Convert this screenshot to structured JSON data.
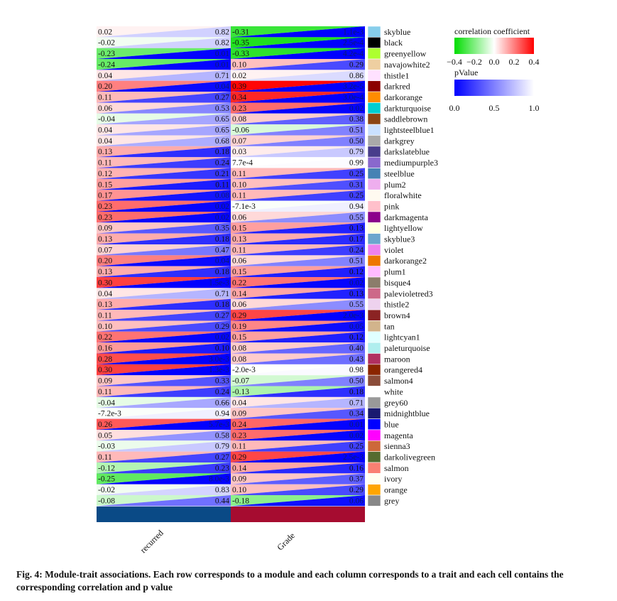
{
  "chart_data": {
    "type": "heatmap",
    "cell_style": "triangle-split: upper-left triangle colored by correlation coefficient, lower-right triangle colored by p value",
    "traits": [
      "recurred",
      "Grade"
    ],
    "trait_colors": [
      "#0a4a86",
      "#a60c30"
    ],
    "modules": [
      {
        "name": "skyblue",
        "color": "#87ceeb",
        "recurred": {
          "r": "0.02",
          "p": "0.82"
        },
        "Grade": {
          "r": "-0.31",
          "p": "1.1e-3"
        }
      },
      {
        "name": "black",
        "color": "#000000",
        "recurred": {
          "r": "-0.02",
          "p": "0.82"
        },
        "Grade": {
          "r": "-0.35",
          "p": "2.5e-4"
        }
      },
      {
        "name": "greenyellow",
        "color": "#adff2f",
        "recurred": {
          "r": "-0.23",
          "p": "0.01"
        },
        "Grade": {
          "r": "-0.33",
          "p": "4.2e-4"
        }
      },
      {
        "name": "navajowhite2",
        "color": "#eecfa1",
        "recurred": {
          "r": "-0.24",
          "p": "0.01"
        },
        "Grade": {
          "r": "0.10",
          "p": "0.29"
        }
      },
      {
        "name": "thistle1",
        "color": "#ffe1ff",
        "recurred": {
          "r": "0.04",
          "p": "0.71"
        },
        "Grade": {
          "r": "0.02",
          "p": "0.86"
        }
      },
      {
        "name": "darkred",
        "color": "#8b0000",
        "recurred": {
          "r": "0.20",
          "p": "0.04"
        },
        "Grade": {
          "r": "0.39",
          "p": "3.2e-5"
        }
      },
      {
        "name": "darkorange",
        "color": "#ff8c00",
        "recurred": {
          "r": "0.11",
          "p": "0.27"
        },
        "Grade": {
          "r": "0.34",
          "p": "3.0e-4"
        }
      },
      {
        "name": "darkturquoise",
        "color": "#00ced1",
        "recurred": {
          "r": "0.06",
          "p": "0.53"
        },
        "Grade": {
          "r": "0.23",
          "p": "0.02"
        }
      },
      {
        "name": "saddlebrown",
        "color": "#8b4513",
        "recurred": {
          "r": "-0.04",
          "p": "0.65"
        },
        "Grade": {
          "r": "0.08",
          "p": "0.38"
        }
      },
      {
        "name": "lightsteelblue1",
        "color": "#cae1ff",
        "recurred": {
          "r": "0.04",
          "p": "0.65"
        },
        "Grade": {
          "r": "-0.06",
          "p": "0.51"
        }
      },
      {
        "name": "darkgrey",
        "color": "#a9a9a9",
        "recurred": {
          "r": "0.04",
          "p": "0.68"
        },
        "Grade": {
          "r": "0.07",
          "p": "0.50"
        }
      },
      {
        "name": "darkslateblue",
        "color": "#483d8b",
        "recurred": {
          "r": "0.13",
          "p": "0.18"
        },
        "Grade": {
          "r": "0.03",
          "p": "0.79"
        }
      },
      {
        "name": "mediumpurple3",
        "color": "#8968cd",
        "recurred": {
          "r": "0.11",
          "p": "0.24"
        },
        "Grade": {
          "r": "7.7e-4",
          "p": "0.99"
        }
      },
      {
        "name": "steelblue",
        "color": "#4682b4",
        "recurred": {
          "r": "0.12",
          "p": "0.21"
        },
        "Grade": {
          "r": "0.11",
          "p": "0.25"
        }
      },
      {
        "name": "plum2",
        "color": "#eeaeee",
        "recurred": {
          "r": "0.15",
          "p": "0.11"
        },
        "Grade": {
          "r": "0.10",
          "p": "0.31"
        }
      },
      {
        "name": "floralwhite",
        "color": "#fffaf0",
        "recurred": {
          "r": "0.17",
          "p": "0.08"
        },
        "Grade": {
          "r": "0.11",
          "p": "0.25"
        }
      },
      {
        "name": "pink",
        "color": "#ffc0cb",
        "recurred": {
          "r": "0.23",
          "p": "0.02"
        },
        "Grade": {
          "r": "-7.1e-3",
          "p": "0.94"
        }
      },
      {
        "name": "darkmagenta",
        "color": "#8b008b",
        "recurred": {
          "r": "0.23",
          "p": "0.02"
        },
        "Grade": {
          "r": "0.06",
          "p": "0.55"
        }
      },
      {
        "name": "lightyellow",
        "color": "#ffffe0",
        "recurred": {
          "r": "0.09",
          "p": "0.35"
        },
        "Grade": {
          "r": "0.15",
          "p": "0.13"
        }
      },
      {
        "name": "skyblue3",
        "color": "#6ca6cd",
        "recurred": {
          "r": "0.13",
          "p": "0.18"
        },
        "Grade": {
          "r": "0.13",
          "p": "0.17"
        }
      },
      {
        "name": "violet",
        "color": "#ee82ee",
        "recurred": {
          "r": "0.07",
          "p": "0.47"
        },
        "Grade": {
          "r": "0.11",
          "p": "0.24"
        }
      },
      {
        "name": "darkorange2",
        "color": "#ee7600",
        "recurred": {
          "r": "0.20",
          "p": "0.04"
        },
        "Grade": {
          "r": "0.06",
          "p": "0.51"
        }
      },
      {
        "name": "plum1",
        "color": "#ffbbff",
        "recurred": {
          "r": "0.13",
          "p": "0.18"
        },
        "Grade": {
          "r": "0.15",
          "p": "0.12"
        }
      },
      {
        "name": "bisque4",
        "color": "#8b7d6b",
        "recurred": {
          "r": "0.30",
          "p": "1.5e-3"
        },
        "Grade": {
          "r": "0.22",
          "p": "0.02"
        }
      },
      {
        "name": "palevioletred3",
        "color": "#cd6889",
        "recurred": {
          "r": "0.04",
          "p": "0.71"
        },
        "Grade": {
          "r": "0.14",
          "p": "0.13"
        }
      },
      {
        "name": "thistle2",
        "color": "#eed2ee",
        "recurred": {
          "r": "0.13",
          "p": "0.18"
        },
        "Grade": {
          "r": "0.06",
          "p": "0.55"
        }
      },
      {
        "name": "brown4",
        "color": "#8b2323",
        "recurred": {
          "r": "0.11",
          "p": "0.27"
        },
        "Grade": {
          "r": "0.29",
          "p": "2.0e-3"
        }
      },
      {
        "name": "tan",
        "color": "#d2b48c",
        "recurred": {
          "r": "0.10",
          "p": "0.29"
        },
        "Grade": {
          "r": "0.19",
          "p": "0.05"
        }
      },
      {
        "name": "lightcyan1",
        "color": "#e0ffff",
        "recurred": {
          "r": "0.22",
          "p": "0.02"
        },
        "Grade": {
          "r": "0.15",
          "p": "0.12"
        }
      },
      {
        "name": "paleturquoise",
        "color": "#afeeee",
        "recurred": {
          "r": "0.16",
          "p": "0.10"
        },
        "Grade": {
          "r": "0.08",
          "p": "0.40"
        }
      },
      {
        "name": "maroon",
        "color": "#b03060",
        "recurred": {
          "r": "0.28",
          "p": "3.0e-3"
        },
        "Grade": {
          "r": "0.08",
          "p": "0.43"
        }
      },
      {
        "name": "orangered4",
        "color": "#8b2500",
        "recurred": {
          "r": "0.30",
          "p": "1.3e-3"
        },
        "Grade": {
          "r": "-2.0e-3",
          "p": "0.98"
        }
      },
      {
        "name": "salmon4",
        "color": "#8b4c39",
        "recurred": {
          "r": "0.09",
          "p": "0.33"
        },
        "Grade": {
          "r": "-0.07",
          "p": "0.50"
        }
      },
      {
        "name": "white",
        "color": "#ffffff",
        "recurred": {
          "r": "0.11",
          "p": "0.24"
        },
        "Grade": {
          "r": "-0.13",
          "p": "0.18"
        }
      },
      {
        "name": "grey60",
        "color": "#999999",
        "recurred": {
          "r": "-0.04",
          "p": "0.66"
        },
        "Grade": {
          "r": "0.04",
          "p": "0.71"
        }
      },
      {
        "name": "midnightblue",
        "color": "#191970",
        "recurred": {
          "r": "-7.2e-3",
          "p": "0.94"
        },
        "Grade": {
          "r": "0.09",
          "p": "0.34"
        }
      },
      {
        "name": "blue",
        "color": "#0000ff",
        "recurred": {
          "r": "0.26",
          "p": "5.7e-3"
        },
        "Grade": {
          "r": "0.24",
          "p": "0.01"
        }
      },
      {
        "name": "magenta",
        "color": "#ff00ff",
        "recurred": {
          "r": "0.05",
          "p": "0.58"
        },
        "Grade": {
          "r": "0.23",
          "p": "0.02"
        }
      },
      {
        "name": "sienna3",
        "color": "#cd6839",
        "recurred": {
          "r": "-0.03",
          "p": "0.79"
        },
        "Grade": {
          "r": "0.11",
          "p": "0.25"
        }
      },
      {
        "name": "darkolivegreen",
        "color": "#556b2f",
        "recurred": {
          "r": "0.11",
          "p": "0.27"
        },
        "Grade": {
          "r": "0.29",
          "p": "2.5e-3"
        }
      },
      {
        "name": "salmon",
        "color": "#fa8072",
        "recurred": {
          "r": "-0.12",
          "p": "0.23"
        },
        "Grade": {
          "r": "0.14",
          "p": "0.16"
        }
      },
      {
        "name": "ivory",
        "color": "#fffff0",
        "recurred": {
          "r": "-0.25",
          "p": "8.0e-3"
        },
        "Grade": {
          "r": "0.09",
          "p": "0.37"
        }
      },
      {
        "name": "orange",
        "color": "#ffa500",
        "recurred": {
          "r": "-0.02",
          "p": "0.83"
        },
        "Grade": {
          "r": "0.10",
          "p": "0.29"
        }
      },
      {
        "name": "grey",
        "color": "#888888",
        "recurred": {
          "r": "-0.08",
          "p": "0.44"
        },
        "Grade": {
          "r": "-0.18",
          "p": "0.06"
        }
      }
    ],
    "legend": {
      "correlation": {
        "title": "correlation coefficient",
        "range": [
          -0.4,
          0.4
        ],
        "tick_values": [
          -0.4,
          -0.2,
          0.0,
          0.2,
          0.4
        ],
        "tick_labels": [
          "-0.4",
          "-0.2",
          "0.0",
          "0.2",
          "0.4"
        ],
        "colors": [
          "#00dd00",
          "#ffffff",
          "#ff0000"
        ]
      },
      "pvalue": {
        "title": "pValue",
        "range": [
          0.0,
          1.0
        ],
        "tick_values": [
          0.0,
          0.5,
          1.0
        ],
        "tick_labels": [
          "0.0",
          "0.5",
          "1.0"
        ],
        "colors": [
          "#0000ff",
          "#ffffff"
        ]
      }
    }
  },
  "caption": "Fig. 4: Module-trait associations. Each row corresponds to a module and each column corresponds to a trait and each cell contains the corresponding correlation and p value"
}
